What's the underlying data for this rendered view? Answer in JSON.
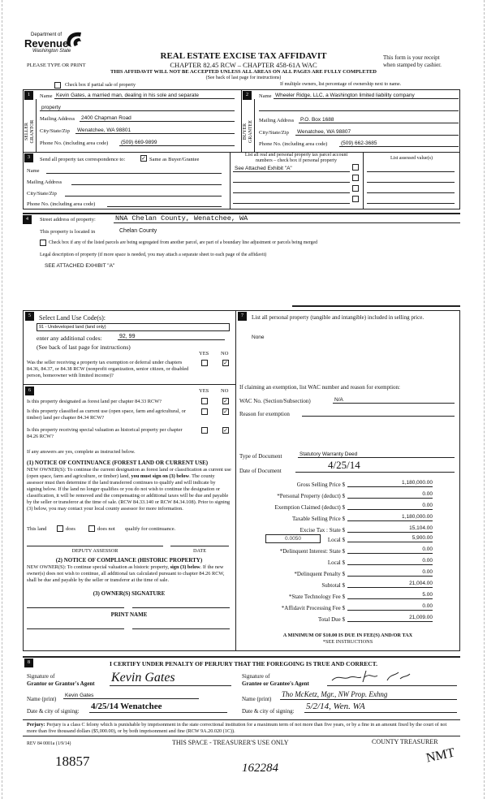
{
  "header": {
    "logo_line1": "Department of",
    "logo_line2": "Revenue",
    "logo_line3": "Washington State",
    "title": "REAL ESTATE EXCISE TAX AFFIDAVIT",
    "chapter": "CHAPTER 82.45 RCW – CHAPTER 458-61A WAC",
    "please": "PLEASE TYPE OR PRINT",
    "receipt1": "This form is your receipt",
    "receipt2": "when stamped by cashier.",
    "warning": "THIS AFFIDAVIT WILL NOT BE ACCEPTED UNLESS ALL AREAS ON ALL PAGES ARE FULLY COMPLETED",
    "see_back": "(See back of last page for instructions)",
    "partial_sale": "Check box if partial sale of property",
    "multiple_owners": "If multiple owners, list percentage of ownership next to name."
  },
  "seller": {
    "num": "1",
    "side": "SELLER GRANTOR",
    "name_label": "Name",
    "name1": "Kevin Gates, a married man, dealing in his sole and separate",
    "name2": "property",
    "mail_label": "Mailing Address",
    "mail": "2400 Chapman Road",
    "city_label": "City/State/Zip",
    "city": "Wenatchee, WA 98801",
    "phone_label": "Phone No. (including area code)",
    "phone": "(509) 669-9899"
  },
  "buyer": {
    "num": "2",
    "side": "BUYER GRANTEE",
    "name_label": "Name",
    "name1": "Wheeler Ridge, LLC, a Washington limited liability company",
    "mail_label": "Mailing Address",
    "mail": "P.O. Box 1688",
    "city_label": "City/State/Zip",
    "city": "Wenatchee, WA 98807",
    "phone_label": "Phone No. (including area code)",
    "phone": "(509) 662-3685"
  },
  "correspondence": {
    "num": "3",
    "label": "Send all property tax correspondence to:",
    "same": "Same as Buyer/Grantee",
    "same_checked": true,
    "name": "Name",
    "mail": "Mailing Address",
    "city": "City/State/Zip",
    "phone": "Phone No. (including area code)"
  },
  "parcels": {
    "header1": "List all real and personal property tax parcel account",
    "header2": "numbers – check box if personal property",
    "assessed": "List assessed value(s)",
    "items": [
      "See Attached Exhibit \"A\"",
      "",
      "",
      ""
    ]
  },
  "property": {
    "num": "4",
    "street_label": "Street address of property:",
    "street": "NNA Chelan County, Wenatchee, WA",
    "located_label": "This property is located in",
    "located": "Chelan County",
    "segregated": "Check box if any of the listed parcels are being segregated from another parcel, are part of a boundary line adjustment or parcels being merged",
    "legal_label": "Legal description of property (if more space is needed, you may attach a separate sheet to each page of the affidavit)",
    "legal": "SEE ATTACHED EXHIBIT \"A\""
  },
  "land_use": {
    "num": "5",
    "label": "Select Land Use Code(s):",
    "selected": "91 - Undeveloped land (land only)",
    "additional_label": "enter any additional codes:",
    "additional": "92, 99",
    "see_back": "(See back of last page for instructions)",
    "yes": "YES",
    "no": "NO",
    "q_exempt": "Was the seller receiving a property tax exemption or deferral under chapters 84.36, 84.37, or 84.38 RCW (nonprofit organization, senior citizen, or disabled person, homeowner with limited income)?",
    "q_exempt_answer": "NO"
  },
  "section6": {
    "num": "6",
    "yes": "YES",
    "no": "NO",
    "questions": [
      {
        "text": "Is this property designated as forest land per chapter 84.33 RCW?",
        "answer": "NO"
      },
      {
        "text": "Is this property classified as current use (open space, farm and agricultural, or timber) land per chapter 84.34 RCW?",
        "answer": "NO"
      },
      {
        "text": "Is this property receiving special valuation as historical property per chapter 84.26 RCW?",
        "answer": "NO"
      }
    ],
    "if_yes": "If any answers are yes, complete as instructed below.",
    "notice1_title": "(1) NOTICE OF CONTINUANCE (FOREST LAND OR CURRENT USE)",
    "notice1_a": "NEW OWNER(S): To continue the current designation as forest land or classification as current use (open space, farm and agriculture, or timber) land, ",
    "notice1_bold": "you must sign on (3) below",
    "notice1_b": ". The county assessor must then determine if the land transferred continues to qualify and will indicate by signing below. If the land no longer qualifies or you do not wish to continue the designation or classification, it will be removed and the compensating or additional taxes will be due and payable by the seller or transferor at the time of sale. (RCW 84.33.140 or RCW 84.34.108). Prior to signing (3) below, you may contact your local county assessor for more information.",
    "this_land": "This land",
    "does": "does",
    "does_not": "does not",
    "qualify": "qualify for continuance.",
    "deputy": "DEPUTY ASSESSOR",
    "date": "DATE",
    "notice2_title": "(2) NOTICE OF COMPLIANCE (HISTORIC PROPERTY)",
    "notice2_a": "NEW OWNER(S): To continue special valuation as historic property, ",
    "notice2_bold": "sign (3) below",
    "notice2_b": ". If the new owner(s) does not wish to continue, all additional tax calculated pursuant to chapter 84.26 RCW, shall be due and payable by the seller or transferor at the time of sale.",
    "owner_sig": "(3) OWNER(S) SIGNATURE",
    "print_name": "PRINT NAME"
  },
  "section7": {
    "num": "7",
    "label": "List all personal property (tangible and intangible) included in selling price.",
    "value": "None",
    "exempt_label": "If claiming an exemption, list WAC number and reason for exemption:",
    "wac_label": "WAC No. (Section/Subsection)",
    "wac": "N/A",
    "reason_label": "Reason for exemption",
    "doc_type_label": "Type of Document",
    "doc_type": "Statutory Warranty Deed",
    "doc_date_label": "Date of Document",
    "doc_date": "4/25/14",
    "local_rate": "0.0050",
    "amounts": [
      {
        "label": "Gross Selling Price $",
        "value": "1,180,000.00"
      },
      {
        "label": "*Personal Property (deduct) $",
        "value": "0.00"
      },
      {
        "label": "Exemption Claimed (deduct) $",
        "value": "0.00"
      },
      {
        "label": "Taxable Selling Price $",
        "value": "1,180,000.00"
      },
      {
        "label": "Excise Tax : State $",
        "value": "15,104.00"
      },
      {
        "label": "Local $",
        "value": "5,900.00"
      },
      {
        "label": "*Delinquent Interest: State $",
        "value": "0.00"
      },
      {
        "label": "Local $",
        "value": "0.00"
      },
      {
        "label": "*Delinquent Penalty $",
        "value": "0.00"
      },
      {
        "label": "Subtotal $",
        "value": "21,004.00"
      },
      {
        "label": "*State Technology Fee $",
        "value": "5.00"
      },
      {
        "label": "*Affidavit Processing Fee $",
        "value": "0.00"
      },
      {
        "label": "Total Due $",
        "value": "21,009.00"
      }
    ],
    "minimum": "A MINIMUM OF $10.00 IS DUE IN FEE(S) AND/OR TAX",
    "see_instr": "*SEE INSTRUCTIONS"
  },
  "section8": {
    "num": "8",
    "certify": "I CERTIFY UNDER PENALTY OF PERJURY THAT THE FOREGOING IS TRUE AND CORRECT.",
    "grantor_sig1": "Signature of",
    "grantor_sig2": "Grantor or Grantor's Agent",
    "grantor_signature": "Kevin Gates",
    "grantor_name_label": "Name (print)",
    "grantor_name": "Kevin Gates",
    "grantor_date_label": "Date & city of signing:",
    "grantor_date": "4/25/14 Wenatchee",
    "grantee_sig1": "Signature of",
    "grantee_sig2": "Grantee or Grantee's Agent",
    "grantee_signature": "signature",
    "grantee_name_label": "Name (print)",
    "grantee_name": "Tho McKetz, Mgr., NW Prop. Exhng",
    "grantee_date_label": "Date & city of signing:",
    "grantee_date": "5/2/14, Wen. WA"
  },
  "footer": {
    "perjury_bold": "Perjury:",
    "perjury": " Perjury is a class C felony which is punishable by imprisonment in the state correctional institution for a maximum term of not more than five years, or by a fine in an amount fixed by the court of not more than five thousand dollars ($5,000.00), or by both imprisonment and fine (RCW 9A.20.020 (1C)).",
    "rev": "REV 84 0001a (1/9/14)",
    "treasurer_space": "THIS SPACE - TREASURER'S USE ONLY",
    "county_treasurer": "COUNTY TREASURER",
    "hand1": "18857",
    "hand2": "162284",
    "hand3": "NMT"
  }
}
